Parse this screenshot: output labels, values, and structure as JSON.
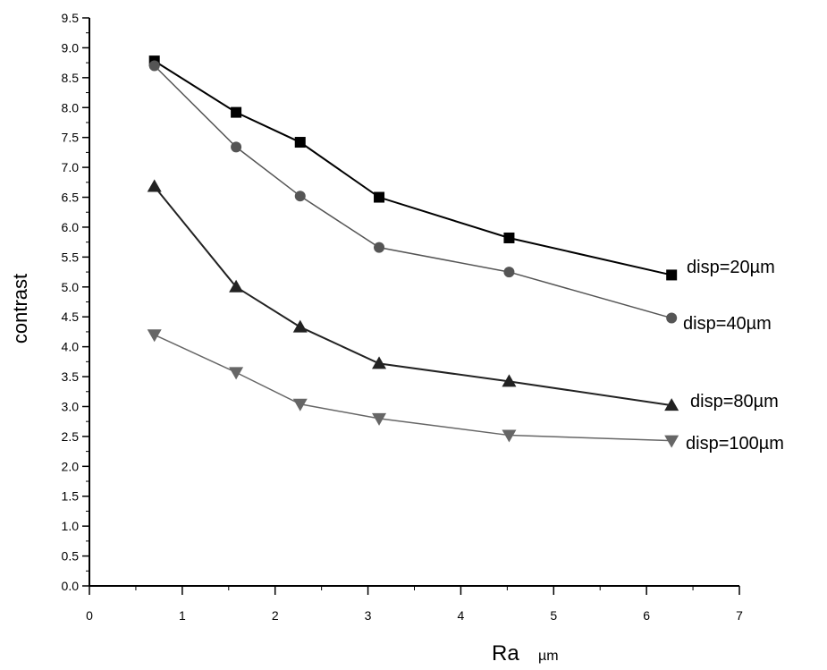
{
  "chart_data": {
    "type": "line",
    "title": "",
    "xlabel": "Ra",
    "xlabel_unit": "µm",
    "ylabel": "contrast",
    "xlim": [
      0,
      7
    ],
    "ylim": [
      0,
      9.5
    ],
    "x_ticks": [
      "0",
      "1",
      "2",
      "3",
      "4",
      "5",
      "6",
      "7"
    ],
    "y_ticks": [
      "0.0",
      "0.5",
      "1.0",
      "1.5",
      "2.0",
      "2.5",
      "3.0",
      "3.5",
      "4.0",
      "4.5",
      "5.0",
      "5.5",
      "6.0",
      "6.5",
      "7.0",
      "7.5",
      "8.0",
      "8.5",
      "9.0",
      "9.5"
    ],
    "grid": false,
    "legend": "series labels at right end of lines",
    "x": [
      0.7,
      1.58,
      2.27,
      3.12,
      4.52,
      6.27
    ],
    "series": [
      {
        "name": "disp=20µm",
        "marker": "square",
        "color": "#000000",
        "values": [
          8.78,
          7.92,
          7.42,
          6.5,
          5.82,
          5.2
        ]
      },
      {
        "name": "disp=40µm",
        "marker": "circle",
        "color": "#555555",
        "values": [
          8.7,
          7.34,
          6.52,
          5.66,
          5.25,
          4.48
        ]
      },
      {
        "name": "disp=80µm",
        "marker": "triangle-up",
        "color": "#222222",
        "values": [
          6.68,
          5.0,
          4.33,
          3.72,
          3.42,
          3.02
        ]
      },
      {
        "name": "disp=100µm",
        "marker": "triangle-down",
        "color": "#666666",
        "values": [
          4.2,
          3.57,
          3.04,
          2.8,
          2.52,
          2.43
        ]
      }
    ]
  }
}
